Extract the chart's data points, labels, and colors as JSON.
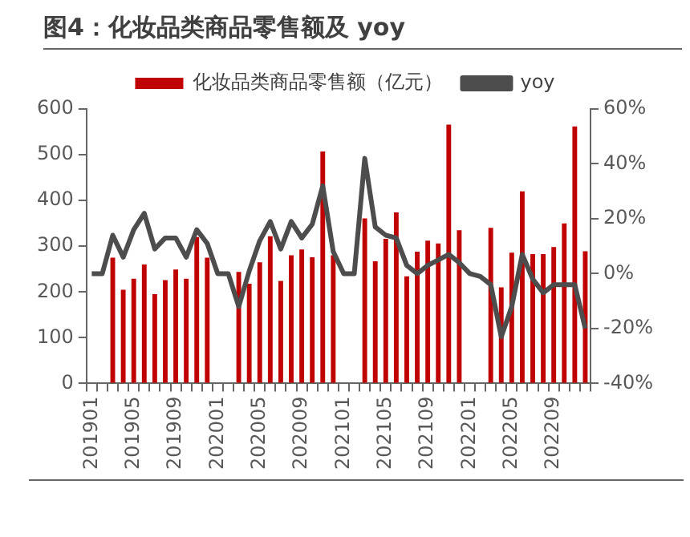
{
  "chart_data": {
    "type": "bar",
    "title": "图4：化妆品类商品零售额及 yoy",
    "categories": [
      "201901",
      null,
      null,
      null,
      "201905",
      null,
      null,
      null,
      "201909",
      null,
      null,
      null,
      "202001",
      null,
      null,
      null,
      "202005",
      null,
      null,
      null,
      "202009",
      null,
      null,
      null,
      "202101",
      null,
      null,
      null,
      "202105",
      null,
      null,
      null,
      "202109",
      null,
      null,
      null,
      "202201",
      null,
      null,
      null,
      "202205",
      null,
      null,
      null,
      "202209",
      null,
      null,
      null
    ],
    "series": [
      {
        "name": "化妆品类商品零售额（亿元）",
        "color": "#c00000",
        "values": [
          null,
          null,
          275,
          205,
          229,
          260,
          195,
          226,
          249,
          229,
          320,
          275,
          null,
          null,
          244,
          218,
          265,
          322,
          224,
          280,
          293,
          276,
          507,
          280,
          null,
          null,
          361,
          267,
          316,
          374,
          234,
          288,
          312,
          306,
          566,
          335,
          null,
          null,
          340,
          210,
          286,
          420,
          283,
          283,
          298,
          350,
          562,
          289
        ]
      },
      {
        "name": "yoy",
        "type": "line",
        "axis": "y2",
        "color": "#4d4d4d",
        "values": [
          0,
          0,
          14,
          6,
          16,
          22,
          9,
          13,
          13,
          6,
          16,
          11,
          0,
          0,
          -12,
          1,
          12,
          19,
          9,
          19,
          13,
          18,
          32,
          8,
          0,
          0,
          42,
          17,
          14,
          13,
          3,
          0,
          3,
          5,
          7,
          4,
          0,
          -1,
          -4,
          -23,
          -12,
          7,
          -2,
          -7,
          -4,
          -4,
          -4,
          -20
        ]
      }
    ],
    "ylim": [
      0,
      600
    ],
    "yticks": [
      0,
      100,
      200,
      300,
      400,
      500,
      600
    ],
    "y2lim": [
      -40,
      60
    ],
    "y2ticks": [
      {
        "value": -40,
        "label": "-40%"
      },
      {
        "value": -20,
        "label": "-20%"
      },
      {
        "value": 0,
        "label": "0%"
      },
      {
        "value": 20,
        "label": "20%"
      },
      {
        "value": 40,
        "label": "40%"
      },
      {
        "value": 60,
        "label": "60%"
      }
    ],
    "grid": false,
    "legend": "top"
  }
}
